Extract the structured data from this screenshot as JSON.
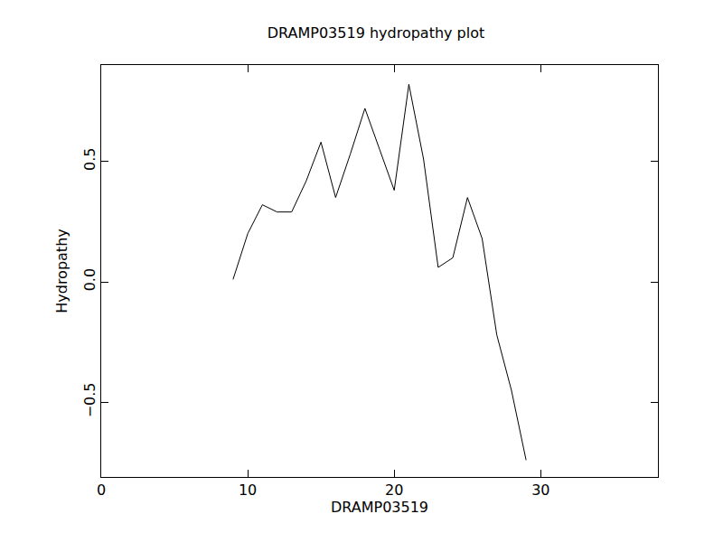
{
  "chart_data": {
    "type": "line",
    "title": "DRAMP03519 hydropathy plot",
    "x_label": "DRAMP03519",
    "y_label": "Hydropathy",
    "x": [
      9,
      10,
      11,
      12,
      13,
      14,
      15,
      16,
      17,
      18,
      19,
      20,
      21,
      22,
      23,
      24,
      25,
      26,
      27,
      28,
      29
    ],
    "values": [
      0.01,
      0.2,
      0.32,
      0.29,
      0.29,
      0.42,
      0.58,
      0.35,
      0.53,
      0.72,
      0.55,
      0.38,
      0.82,
      0.51,
      0.06,
      0.1,
      0.35,
      0.18,
      -0.22,
      -0.45,
      -0.74
    ],
    "color": "#000000",
    "xlim": [
      0,
      38
    ],
    "xticks": [
      0,
      10,
      20,
      30
    ],
    "ylim": [
      -0.81,
      0.9
    ],
    "yticks": [
      {
        "value": -0.5,
        "label": "−0.5"
      },
      {
        "value": 0,
        "label": "0.0"
      },
      0.5
    ],
    "grid": false
  }
}
